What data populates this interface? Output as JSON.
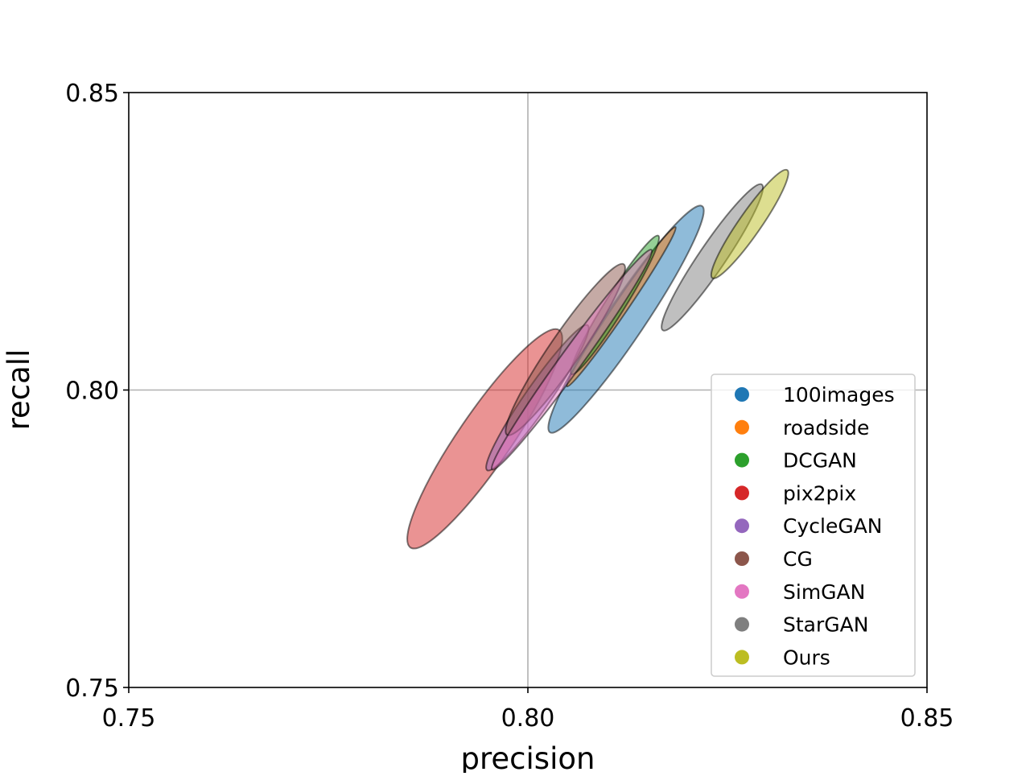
{
  "chart_data": {
    "type": "scatter",
    "subtype": "ellipses",
    "title": "",
    "xlabel": "precision",
    "ylabel": "recall",
    "xlim": [
      0.75,
      0.85
    ],
    "ylim": [
      0.75,
      0.85
    ],
    "xticks": [
      "0.75",
      "0.80",
      "0.85"
    ],
    "yticks": [
      "0.75",
      "0.80",
      "0.85"
    ],
    "xtick_values": [
      0.75,
      0.8,
      0.85
    ],
    "ytick_values": [
      0.75,
      0.8,
      0.85
    ],
    "grid": "center lines at 0.80",
    "legend_position": "lower-right",
    "series": [
      {
        "name": "100images",
        "color": "#1f77b4",
        "cx": 0.8123,
        "cy": 0.8119,
        "dx": 0.00953,
        "dy": 0.01901,
        "minor_ratio": 0.14
      },
      {
        "name": "roadside",
        "color": "#ff7f0e",
        "cx": 0.8117,
        "cy": 0.814,
        "dx": 0.0068,
        "dy": 0.0134,
        "minor_ratio": 0.07
      },
      {
        "name": "DCGAN",
        "color": "#2ca02c",
        "cx": 0.8109,
        "cy": 0.8143,
        "dx": 0.00544,
        "dy": 0.01164,
        "minor_ratio": 0.12
      },
      {
        "name": "pix2pix",
        "color": "#d62728",
        "cx": 0.7946,
        "cy": 0.7918,
        "dx": 0.00932,
        "dy": 0.01827,
        "minor_ratio": 0.2
      },
      {
        "name": "CycleGAN",
        "color": "#9467bd",
        "cx": 0.8012,
        "cy": 0.7987,
        "dx": 0.0063,
        "dy": 0.01218,
        "minor_ratio": 0.14
      },
      {
        "name": "CG",
        "color": "#8c564b",
        "cx": 0.8047,
        "cy": 0.8068,
        "dx": 0.00731,
        "dy": 0.01434,
        "minor_ratio": 0.15
      },
      {
        "name": "SimGAN",
        "color": "#e377c2",
        "cx": 0.8055,
        "cy": 0.8051,
        "dx": 0.00998,
        "dy": 0.01847,
        "minor_ratio": 0.08
      },
      {
        "name": "StarGAN",
        "color": "#7f7f7f",
        "cx": 0.8231,
        "cy": 0.8223,
        "dx": 0.0062,
        "dy": 0.01225,
        "minor_ratio": 0.15
      },
      {
        "name": "Ours",
        "color": "#bcbd22",
        "cx": 0.8278,
        "cy": 0.8279,
        "dx": 0.00469,
        "dy": 0.00907,
        "minor_ratio": 0.17
      }
    ]
  }
}
